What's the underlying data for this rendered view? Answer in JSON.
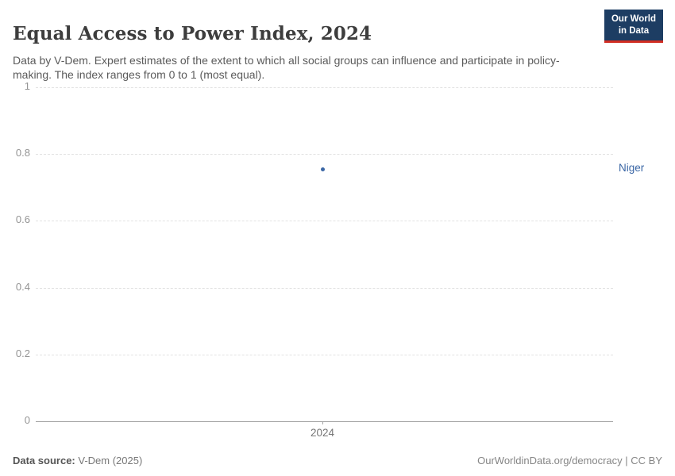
{
  "header": {
    "title": "Equal Access to Power Index, 2024",
    "subtitle": "Data by V-Dem. Expert estimates of the extent to which all social groups can influence and participate in policy-making. The index ranges from 0 to 1 (most equal).",
    "logo": {
      "line1": "Our World",
      "line2": "in Data",
      "bg_color": "#1d3d63",
      "bar_color": "#d12d23",
      "text_color": "#ffffff"
    }
  },
  "chart_data": {
    "type": "scatter",
    "title": "Equal Access to Power Index, 2024",
    "x": [
      2024
    ],
    "series": [
      {
        "name": "Niger",
        "values": [
          0.755
        ],
        "color": "#3a66a5"
      }
    ],
    "xlabel": "",
    "ylabel": "",
    "ylim": [
      0,
      1
    ],
    "yticks": [
      0,
      0.2,
      0.4,
      0.6,
      0.8,
      1
    ],
    "ytick_labels": [
      "0",
      "0.2",
      "0.4",
      "0.6",
      "0.8",
      "1"
    ],
    "xtick_labels": [
      "2024"
    ],
    "grid": "horizontal-dashed",
    "legend_position": "right-entity-label",
    "entity_label": "Niger"
  },
  "footer": {
    "source_label": "Data source:",
    "source_value": "V-Dem (2025)",
    "credit": "OurWorldinData.org/democracy | CC BY"
  }
}
